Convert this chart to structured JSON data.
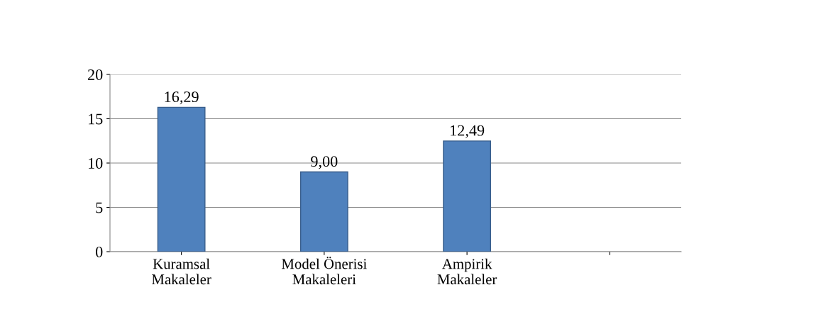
{
  "chart_data": {
    "type": "bar",
    "categories": [
      "Kuramsal\nMakaleler",
      "Model Önerisi\nMakaleleri",
      "Ampirik\nMakaleler",
      null
    ],
    "values": [
      16.29,
      9.0,
      12.49,
      null
    ],
    "value_labels": [
      "16,29",
      "9,00",
      "12,49",
      null
    ],
    "color": "#4f81bd",
    "ylim": [
      0,
      20
    ],
    "yticks": [
      0,
      5,
      10,
      15,
      20
    ],
    "grid": "y"
  }
}
